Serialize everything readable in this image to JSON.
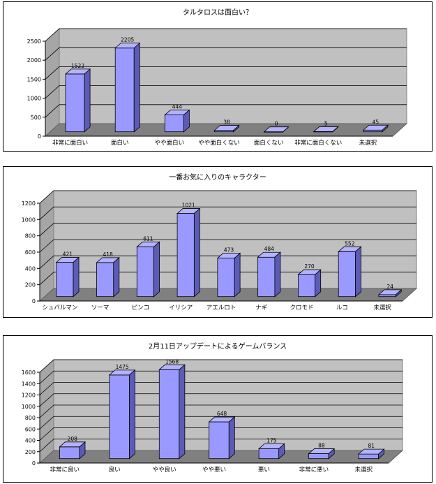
{
  "chart_data": [
    {
      "type": "bar",
      "title": "タルタロスは面白い？",
      "categories": [
        "非常に面白い",
        "面白い",
        "やや面白い",
        "やや面白くない",
        "面白くない",
        "非常に面白くない",
        "未選択"
      ],
      "values": [
        1522,
        2205,
        444,
        38,
        0,
        5,
        45
      ],
      "ylim": [
        0,
        2500
      ],
      "yticks": [
        0,
        500,
        1000,
        1500,
        2000,
        2500
      ],
      "grid": true,
      "bar_color": "#9999ff",
      "legend": "none"
    },
    {
      "type": "bar",
      "title": "一番お気に入りのキャラクター",
      "categories": [
        "シュバルマン",
        "ソーマ",
        "ピンコ",
        "イリシア",
        "アエルロト",
        "ナギ",
        "クロモド",
        "ルコ",
        "未選択"
      ],
      "values": [
        421,
        418,
        611,
        1021,
        473,
        484,
        270,
        552,
        24
      ],
      "ylim": [
        0,
        1200
      ],
      "yticks": [
        0,
        200,
        400,
        600,
        800,
        1000,
        1200
      ],
      "grid": true,
      "bar_color": "#9999ff",
      "legend": "none"
    },
    {
      "type": "bar",
      "title": "2月11日アップデートによるゲームバランス",
      "categories": [
        "非常に良い",
        "良い",
        "やや良い",
        "やや悪い",
        "悪い",
        "非常に悪い",
        "未選択"
      ],
      "values": [
        208,
        1475,
        1568,
        648,
        175,
        88,
        81
      ],
      "ylim": [
        0,
        1600
      ],
      "yticks": [
        0,
        200,
        400,
        600,
        800,
        1000,
        1200,
        1400,
        1600
      ],
      "grid": true,
      "bar_color": "#9999ff",
      "legend": "none"
    }
  ]
}
